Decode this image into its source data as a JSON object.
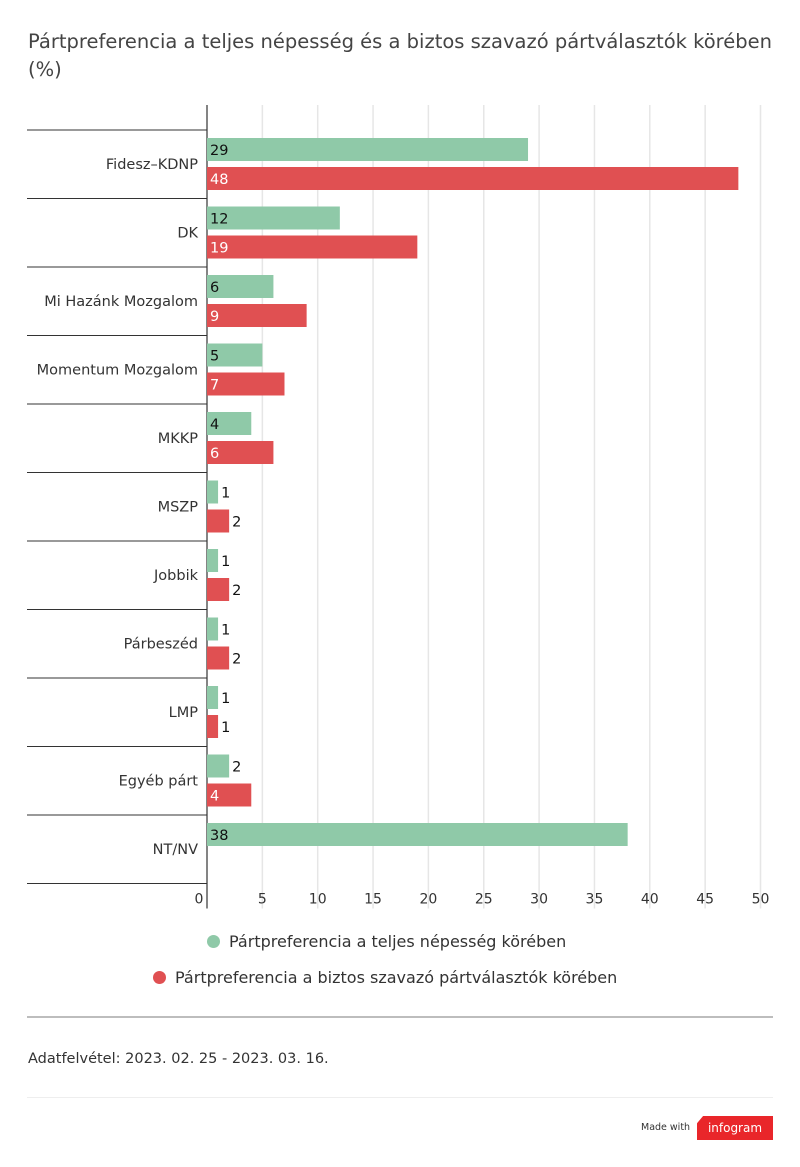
{
  "chart_data": {
    "type": "bar",
    "orientation": "horizontal",
    "title": "Pártpreferencia a teljes népesség és a biztos szavazó pártválasztók körében (%)",
    "categories": [
      "Fidesz–KDNP",
      "DK",
      "Mi Hazánk Mozgalom",
      "Momentum Mozgalom",
      "MKKP",
      "MSZP",
      "Jobbik",
      "Párbeszéd",
      "LMP",
      "Egyéb párt",
      "NT/NV"
    ],
    "series": [
      {
        "name": "Pártpreferencia a teljes népesség körében",
        "color": "#8fc9a8",
        "values": [
          29,
          12,
          6,
          5,
          4,
          1,
          1,
          1,
          1,
          2,
          38
        ]
      },
      {
        "name": "Pártpreferencia a biztos szavazó pártválasztók körében",
        "color": "#e05052",
        "values": [
          48,
          19,
          9,
          7,
          6,
          2,
          2,
          2,
          1,
          4,
          null
        ]
      }
    ],
    "xlim": [
      0,
      50
    ],
    "xticks": [
      0,
      5,
      10,
      15,
      20,
      25,
      30,
      35,
      40,
      45,
      50
    ],
    "grid": true,
    "legend": "bottom"
  },
  "source": "Adatfelvétel: 2023. 02. 25 - 2023. 03. 16.",
  "footer": {
    "made_with": "Made with",
    "brand": "infogram"
  }
}
